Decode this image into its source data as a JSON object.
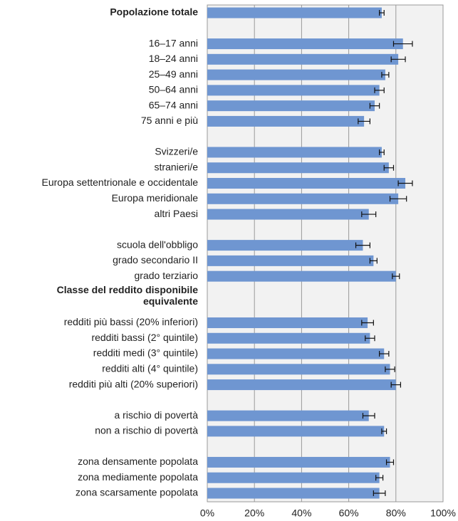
{
  "chart_data": {
    "type": "barh",
    "categories": [
      "Popolazione totale",
      null,
      "16–17 anni",
      "18–24 anni",
      "25–49 anni",
      "50–64 anni",
      "65–74 anni",
      "75 anni e più",
      null,
      "Svizzeri/e",
      "stranieri/e",
      "Europa settentrionale e occidentale",
      "Europa meridionale",
      "altri Paesi",
      null,
      "scuola dell'obbligo",
      "grado secondario II",
      "grado terziario",
      "Classe del reddito disponibile equivalente",
      null,
      "redditi più bassi (20% inferiori)",
      "redditi bassi (2° quintile)",
      "redditi medi (3° quintile)",
      "redditi alti (4° quintile)",
      "redditi più alti (20% superiori)",
      null,
      "a rischio di povertà",
      "non a rischio di povertà",
      null,
      "zona densamente popolata",
      "zona mediamente popolata",
      "zona scarsamente popolata"
    ],
    "values": [
      74,
      null,
      83,
      81,
      75.5,
      73,
      71,
      66.5,
      null,
      74,
      77,
      84,
      81,
      68.5,
      null,
      66,
      70.5,
      80,
      null,
      null,
      68,
      69,
      75,
      77.5,
      80,
      null,
      68.5,
      75,
      null,
      77.5,
      73,
      73
    ],
    "errors": [
      1,
      null,
      4,
      3,
      1.5,
      2,
      2,
      2.5,
      null,
      1,
      2,
      3,
      3.5,
      3,
      null,
      3,
      1.5,
      1.5,
      null,
      null,
      2.5,
      2,
      2,
      2,
      2,
      null,
      2.5,
      1,
      null,
      1.5,
      1.5,
      2.5
    ],
    "bold_labels": [
      0,
      18
    ],
    "color": "#6f96d1",
    "xlim": [
      0,
      100
    ],
    "xticks": [
      {
        "value": 0,
        "label": "0%"
      },
      {
        "value": 20,
        "label": "20%"
      },
      {
        "value": 40,
        "label": "40%"
      },
      {
        "value": 60,
        "label": "60%"
      },
      {
        "value": 80,
        "label": "80%"
      },
      {
        "value": 100,
        "label": "100%"
      }
    ],
    "grid": true
  }
}
